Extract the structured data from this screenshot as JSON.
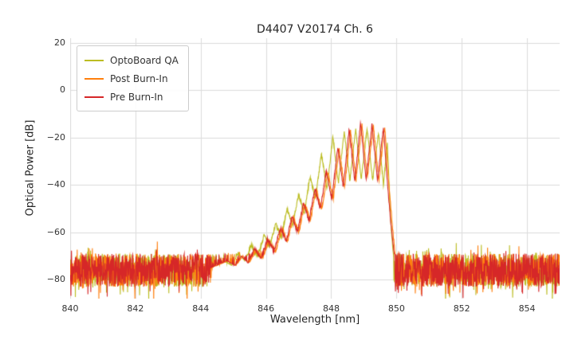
{
  "chart_data": {
    "type": "line",
    "title": "D4407 V20174 Ch. 6",
    "xlabel": "Wavelength [nm]",
    "ylabel": "Optical Power [dB]",
    "xlim": [
      840,
      855
    ],
    "ylim": [
      -88,
      22
    ],
    "xticks": [
      840,
      842,
      844,
      846,
      848,
      850,
      852,
      854
    ],
    "yticks": [
      20,
      0,
      -20,
      -40,
      -60,
      -80
    ],
    "grid": true,
    "grid_color": "#dcdcdc",
    "background": "#ffffff",
    "legend_position": "upper-left",
    "noise_floor": {
      "mean_db": -76,
      "spread_db": 14,
      "spike_up_prob": 0.06,
      "spike_up_db": 6,
      "spike_down_prob": 0.1,
      "spike_down_db": 7
    },
    "series": [
      {
        "name": "OptoBoard QA",
        "color": "#bcbd22",
        "points": [
          [
            844.2,
            -75
          ],
          [
            844.7,
            -72
          ],
          [
            844.95,
            -74
          ],
          [
            845.15,
            -69
          ],
          [
            845.35,
            -72
          ],
          [
            845.55,
            -65.5
          ],
          [
            845.75,
            -70
          ],
          [
            845.95,
            -61
          ],
          [
            846.12,
            -66
          ],
          [
            846.3,
            -56
          ],
          [
            846.47,
            -62
          ],
          [
            846.65,
            -50
          ],
          [
            846.82,
            -57
          ],
          [
            847.0,
            -44
          ],
          [
            847.17,
            -52
          ],
          [
            847.35,
            -36.5
          ],
          [
            847.52,
            -46
          ],
          [
            847.7,
            -26.5
          ],
          [
            847.87,
            -42
          ],
          [
            848.05,
            -19.5
          ],
          [
            848.22,
            -39
          ],
          [
            848.4,
            -17.5
          ],
          [
            848.57,
            -38
          ],
          [
            848.75,
            -16.5
          ],
          [
            848.92,
            -37.5
          ],
          [
            849.1,
            -16.2
          ],
          [
            849.27,
            -38
          ],
          [
            849.45,
            -17.5
          ],
          [
            849.6,
            -40
          ],
          [
            849.72,
            -22
          ],
          [
            849.82,
            -55
          ],
          [
            849.92,
            -72
          ]
        ]
      },
      {
        "name": "Post Burn-In",
        "color": "#ff7f0e",
        "points": [
          [
            844.34,
            -75
          ],
          [
            844.84,
            -72
          ],
          [
            845.09,
            -74
          ],
          [
            845.29,
            -70
          ],
          [
            845.49,
            -73
          ],
          [
            845.69,
            -67.5
          ],
          [
            845.89,
            -71
          ],
          [
            846.09,
            -63.5
          ],
          [
            846.29,
            -68
          ],
          [
            846.49,
            -58.5
          ],
          [
            846.66,
            -64
          ],
          [
            846.84,
            -53.5
          ],
          [
            847.01,
            -60
          ],
          [
            847.19,
            -48
          ],
          [
            847.36,
            -55
          ],
          [
            847.54,
            -42
          ],
          [
            847.71,
            -50.5
          ],
          [
            847.89,
            -34.5
          ],
          [
            848.06,
            -46
          ],
          [
            848.24,
            -24.5
          ],
          [
            848.41,
            -41
          ],
          [
            848.59,
            -17
          ],
          [
            848.76,
            -38
          ],
          [
            848.94,
            -14.2
          ],
          [
            849.11,
            -37
          ],
          [
            849.29,
            -14.8
          ],
          [
            849.46,
            -38
          ],
          [
            849.64,
            -15.2
          ],
          [
            849.78,
            -42
          ],
          [
            849.88,
            -58
          ],
          [
            849.98,
            -72
          ]
        ]
      },
      {
        "name": "Pre Burn-In",
        "color": "#d62728",
        "points": [
          [
            844.3,
            -75
          ],
          [
            844.8,
            -72
          ],
          [
            845.05,
            -74
          ],
          [
            845.25,
            -70
          ],
          [
            845.45,
            -73
          ],
          [
            845.65,
            -67
          ],
          [
            845.85,
            -71
          ],
          [
            846.05,
            -63
          ],
          [
            846.25,
            -68
          ],
          [
            846.45,
            -58
          ],
          [
            846.62,
            -64
          ],
          [
            846.8,
            -53
          ],
          [
            846.97,
            -60
          ],
          [
            847.15,
            -47.5
          ],
          [
            847.32,
            -55
          ],
          [
            847.5,
            -41.5
          ],
          [
            847.67,
            -50
          ],
          [
            847.85,
            -34
          ],
          [
            848.02,
            -46
          ],
          [
            848.2,
            -24
          ],
          [
            848.37,
            -41
          ],
          [
            848.55,
            -16.5
          ],
          [
            848.72,
            -38.5
          ],
          [
            848.9,
            -13.8
          ],
          [
            849.07,
            -37.5
          ],
          [
            849.25,
            -14.5
          ],
          [
            849.42,
            -38.5
          ],
          [
            849.6,
            -15.5
          ],
          [
            849.74,
            -42
          ],
          [
            849.84,
            -58
          ],
          [
            849.95,
            -72
          ]
        ]
      }
    ]
  }
}
